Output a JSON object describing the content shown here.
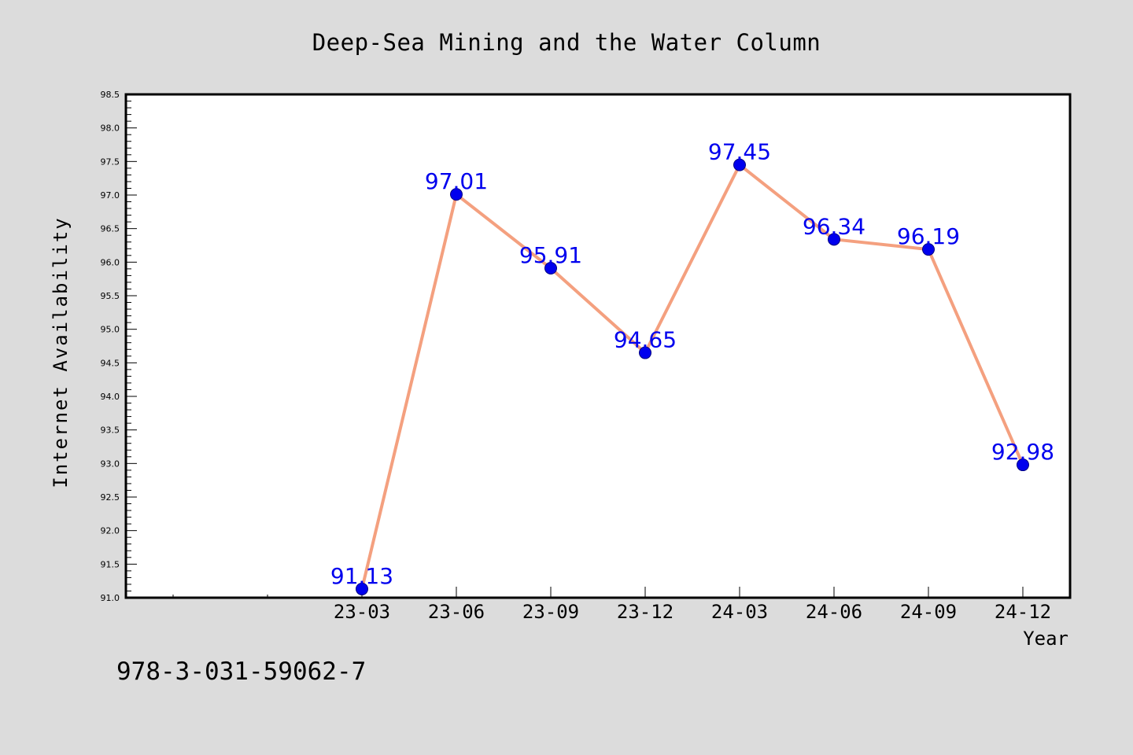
{
  "figure": {
    "background": "#dcdcdc",
    "footer_text": "978-3-031-59062-7"
  },
  "chart_data": {
    "type": "line",
    "title": "Deep-Sea Mining and the Water Column",
    "xlabel": "Year",
    "ylabel": "Internet Availability",
    "categories": [
      "23-03",
      "23-06",
      "23-09",
      "23-12",
      "24-03",
      "24-06",
      "24-09",
      "24-12"
    ],
    "values": [
      91.13,
      97.01,
      95.91,
      94.65,
      97.45,
      96.34,
      96.19,
      92.98
    ],
    "value_labels": [
      "91.13",
      "97.01",
      "95.91",
      "94.65",
      "97.45",
      "96.34",
      "96.19",
      "92.98"
    ],
    "ylim": [
      91.0,
      98.5
    ],
    "yticks": [
      91.0,
      91.5,
      92.0,
      92.5,
      93.0,
      93.5,
      94.0,
      94.5,
      95.0,
      95.5,
      96.0,
      96.5,
      97.0,
      97.5,
      98.0,
      98.5
    ],
    "ytick_labels": [
      "91.0",
      "91.5",
      "92.0",
      "92.5",
      "93.0",
      "93.5",
      "94.0",
      "94.5",
      "95.0",
      "95.5",
      "96.0",
      "96.5",
      "97.0",
      "97.5",
      "98.0",
      "98.5"
    ],
    "grid": false,
    "legend": "none",
    "colors": {
      "line": "#f4a07f",
      "marker": "#0000ee",
      "marker_edge": "#000080",
      "value_label": "#0000ee",
      "plot_background": "#ffffff",
      "axes": "#000000",
      "text": "#000000"
    }
  }
}
